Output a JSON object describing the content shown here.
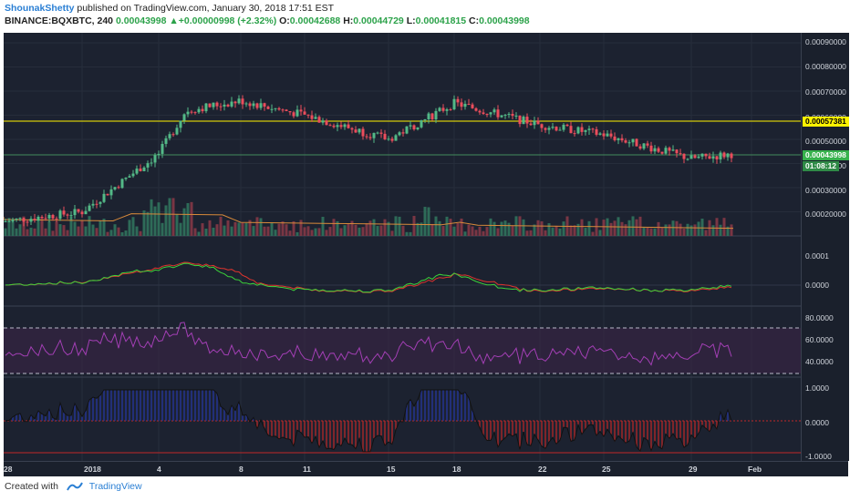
{
  "header": {
    "author": "ShounakShetty",
    "published": " published on TradingView.com, January 30, 2018 17:51 EST",
    "symbol": "BINANCE:BQXBTC, 240",
    "last": " 0.00043998",
    "change_arrow": "▲",
    "change": "+0.00000998 (+2.32%)",
    "o_label": " O:",
    "o": "0.00042688",
    "h_label": " H:",
    "h": "0.00044729",
    "l_label": " L:",
    "l": "0.00041815",
    "c_label": " C:",
    "c": "0.00043998"
  },
  "price_axis": {
    "labels": [
      "0.00090000",
      "0.00080000",
      "0.00070000",
      "0.00060000",
      "0.00050000",
      "0.00040000",
      "0.00030000",
      "0.00020000"
    ],
    "resistance_tag": "0.00057381",
    "last_tag": "0.00043998",
    "timer_tag": "01:08:12"
  },
  "macd_axis": {
    "labels": [
      "0.0001",
      "0.0000"
    ]
  },
  "rsi_axis": {
    "labels": [
      "80.0000",
      "60.0000",
      "40.0000"
    ]
  },
  "osc_axis": {
    "labels": [
      "1.0000",
      "0.0000",
      "-1.0000"
    ]
  },
  "x_axis": {
    "labels": [
      "28",
      "2018",
      "4",
      "8",
      "11",
      "15",
      "18",
      "22",
      "25",
      "29",
      "Feb"
    ]
  },
  "footer": {
    "created": "Created with",
    "brand": "TradingView"
  },
  "colors": {
    "background": "#1c2230",
    "bull": "#53b987",
    "bear": "#eb4d5c",
    "resistance": "#fff200",
    "macd_signal": "#e0342e",
    "macd_line": "#3cd23a",
    "rsi": "#a33fb5",
    "osc_pos": "#2638a8",
    "osc_neg": "#c02828"
  },
  "chart_data": {
    "type": "candlestick",
    "symbol": "BINANCE:BQXBTC",
    "interval": "240",
    "x_labels": [
      "28",
      "2018",
      "4",
      "8",
      "11",
      "15",
      "18",
      "22",
      "25",
      "29",
      "Feb"
    ],
    "y_range": [
      0.00015,
      0.00092
    ],
    "resistance_level": 0.00057381,
    "last_price": 0.00043998,
    "approx_close_path": [
      {
        "x": "28",
        "close": 0.00016
      },
      {
        "x": "2018",
        "close": 0.0002
      },
      {
        "x": "4",
        "close": 0.00044
      },
      {
        "x": "5",
        "close": 0.00062
      },
      {
        "x": "8",
        "close": 0.00066
      },
      {
        "x": "11",
        "close": 0.0006
      },
      {
        "x": "15",
        "close": 0.0005
      },
      {
        "x": "18",
        "close": 0.00065
      },
      {
        "x": "22",
        "close": 0.00056
      },
      {
        "x": "25",
        "close": 0.00052
      },
      {
        "x": "29",
        "close": 0.00042
      },
      {
        "x": "30",
        "close": 0.00044
      }
    ],
    "indicators": [
      "Volume",
      "MACD",
      "RSI",
      "Oscillator"
    ]
  }
}
